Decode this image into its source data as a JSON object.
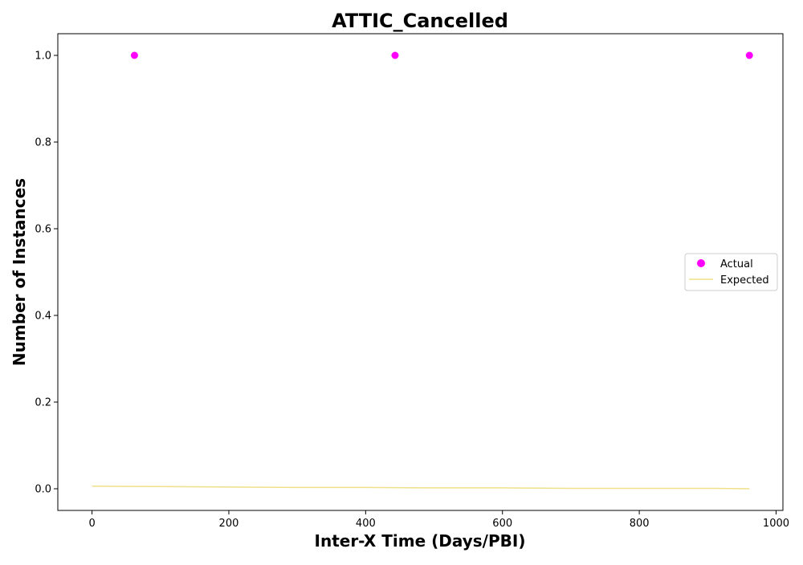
{
  "chart_data": {
    "type": "scatter",
    "title": "ATTIC_Cancelled",
    "xlabel": "Inter-X Time (Days/PBI)",
    "ylabel": "Number of Instances",
    "xlim": [
      -50,
      1010
    ],
    "ylim": [
      -0.05,
      1.05
    ],
    "xticks": [
      0,
      200,
      400,
      600,
      800,
      1000
    ],
    "xtick_labels": [
      "0",
      "200",
      "400",
      "600",
      "800",
      "1000"
    ],
    "yticks": [
      0.0,
      0.2,
      0.4,
      0.6,
      0.8,
      1.0
    ],
    "ytick_labels": [
      "0.0",
      "0.2",
      "0.4",
      "0.6",
      "0.8",
      "1.0"
    ],
    "grid": false,
    "legend_position": "center-right",
    "series": [
      {
        "name": "Actual",
        "kind": "scatter",
        "color": "#ff00ff",
        "x": [
          62,
          443,
          961
        ],
        "y": [
          1.0,
          1.0,
          1.0
        ]
      },
      {
        "name": "Expected",
        "kind": "line",
        "color": "#f0e08a",
        "x": [
          0,
          100,
          200,
          300,
          400,
          500,
          600,
          700,
          800,
          900,
          961
        ],
        "y": [
          0.006,
          0.005,
          0.004,
          0.003,
          0.003,
          0.002,
          0.002,
          0.001,
          0.001,
          0.001,
          0.0
        ]
      }
    ]
  }
}
